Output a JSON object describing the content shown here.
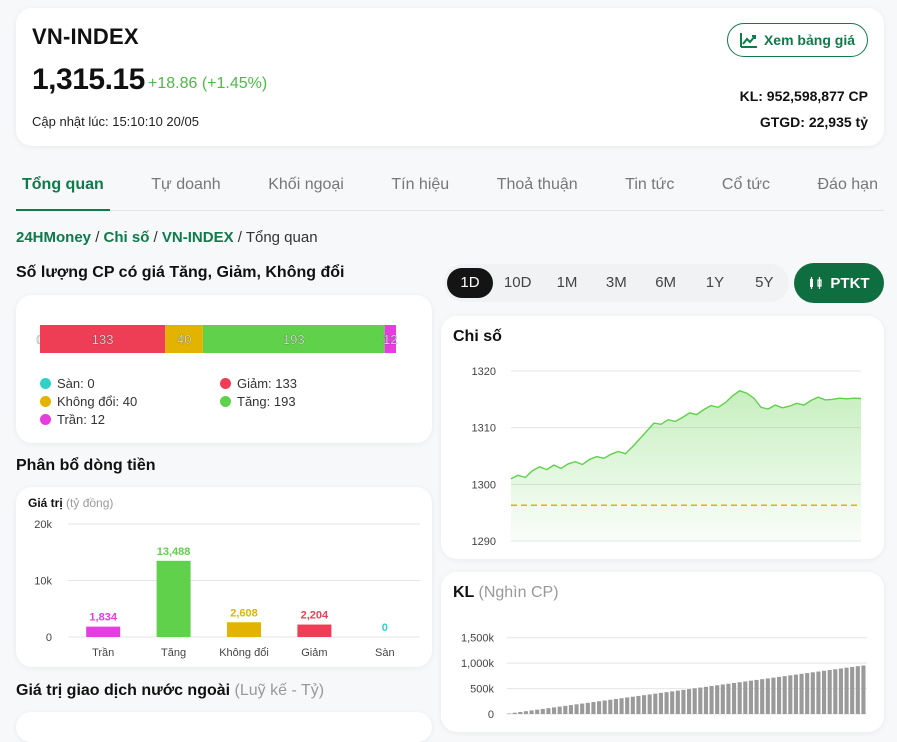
{
  "header": {
    "title": "VN-INDEX",
    "price": "1,315.15",
    "change": "+18.86 (+1.45%)",
    "updated": "Cập nhật lúc: 15:10:10 20/05",
    "xem_label": "Xem bảng giá",
    "kl": "KL: 952,598,877 CP",
    "gtgd": "GTGD: 22,935 tỷ",
    "accent": "#0f7a4a",
    "up_color": "#4cbb47"
  },
  "tabs": [
    "Tổng quan",
    "Tự doanh",
    "Khối ngoại",
    "Tín hiệu",
    "Thoả thuận",
    "Tin tức",
    "Cổ tức",
    "Đáo hạn"
  ],
  "breadcrumb": {
    "items": [
      "24HMoney",
      "Chi số",
      "VN-INDEX"
    ],
    "current": "Tổng quan"
  },
  "breadth": {
    "title": "Số lượng CP có giá Tăng, Giảm, Không đổi",
    "legend": [
      "Sàn: 0",
      "Giảm: 133",
      "Không đổi: 40",
      "Tăng: 193",
      "Trần: 12"
    ]
  },
  "flow": {
    "title": "Phân bổ dòng tiền",
    "unit_label": "Giá trị",
    "unit_hint": "(tỷ đồng)"
  },
  "foreign": {
    "title": "Giá trị giao dịch nước ngoài",
    "hint": "(Luỹ kế - Tỷ)"
  },
  "timeframes": [
    "1D",
    "10D",
    "1M",
    "3M",
    "6M",
    "1Y",
    "5Y"
  ],
  "ptkt_label": "PTKT",
  "index_chart": {
    "title": "Chi số"
  },
  "kl_chart": {
    "title": "KL",
    "hint": "(Nghìn CP)"
  },
  "chart_data": [
    {
      "type": "bar",
      "categories": [
        "Sàn",
        "Giảm",
        "Không đổi",
        "Tăng",
        "Trần"
      ],
      "values": [
        0,
        133,
        40,
        193,
        12
      ],
      "stacked": true,
      "colors": [
        "#2fd2c8",
        "#ee3e55",
        "#e2b300",
        "#5fd14a",
        "#e53de0"
      ]
    },
    {
      "type": "bar",
      "categories": [
        "Trần",
        "Tăng",
        "Không đổi",
        "Giảm",
        "Sàn"
      ],
      "values": [
        1834,
        13488,
        2608,
        2204,
        0
      ],
      "labels": [
        "1,834",
        "13,488",
        "2,608",
        "2,204",
        "0"
      ],
      "colors": [
        "#e53de0",
        "#5fd14a",
        "#e2b300",
        "#ee3e55",
        "#2fd2c8"
      ],
      "ylim": [
        0,
        20000
      ],
      "yticks": [
        "0",
        "10k",
        "20k"
      ]
    },
    {
      "type": "area",
      "ylim": [
        1290,
        1320
      ],
      "yticks": [
        "1290",
        "1300",
        "1310",
        "1320"
      ],
      "reference": 1296.3,
      "values": [
        1301.0,
        1301.6,
        1301.2,
        1302.4,
        1303.1,
        1302.6,
        1303.4,
        1302.8,
        1303.6,
        1304.0,
        1303.5,
        1304.4,
        1304.9,
        1304.6,
        1305.3,
        1305.8,
        1305.4,
        1306.6,
        1308.0,
        1309.4,
        1310.8,
        1310.6,
        1311.4,
        1311.1,
        1311.8,
        1312.6,
        1312.3,
        1313.2,
        1313.9,
        1313.6,
        1314.4,
        1315.6,
        1316.5,
        1316.1,
        1315.2,
        1313.6,
        1313.3,
        1314.0,
        1313.5,
        1313.8,
        1314.3,
        1314.0,
        1314.8,
        1315.4,
        1314.9,
        1315.0,
        1315.2,
        1315.1,
        1315.2,
        1315.15
      ]
    },
    {
      "type": "bar",
      "yticks": [
        "0",
        "500k",
        "1,000k",
        "1,500k"
      ],
      "ylim": [
        0,
        1750
      ],
      "values": [
        10,
        25,
        40,
        55,
        70,
        85,
        100,
        115,
        130,
        145,
        160,
        175,
        190,
        205,
        220,
        235,
        250,
        265,
        280,
        295,
        310,
        325,
        340,
        355,
        370,
        385,
        400,
        415,
        430,
        445,
        460,
        475,
        490,
        505,
        520,
        535,
        550,
        565,
        580,
        595,
        610,
        625,
        640,
        655,
        670,
        685,
        700,
        715,
        730,
        745,
        760,
        775,
        790,
        805,
        820,
        835,
        850,
        865,
        880,
        895,
        910,
        925,
        940,
        952
      ]
    }
  ]
}
